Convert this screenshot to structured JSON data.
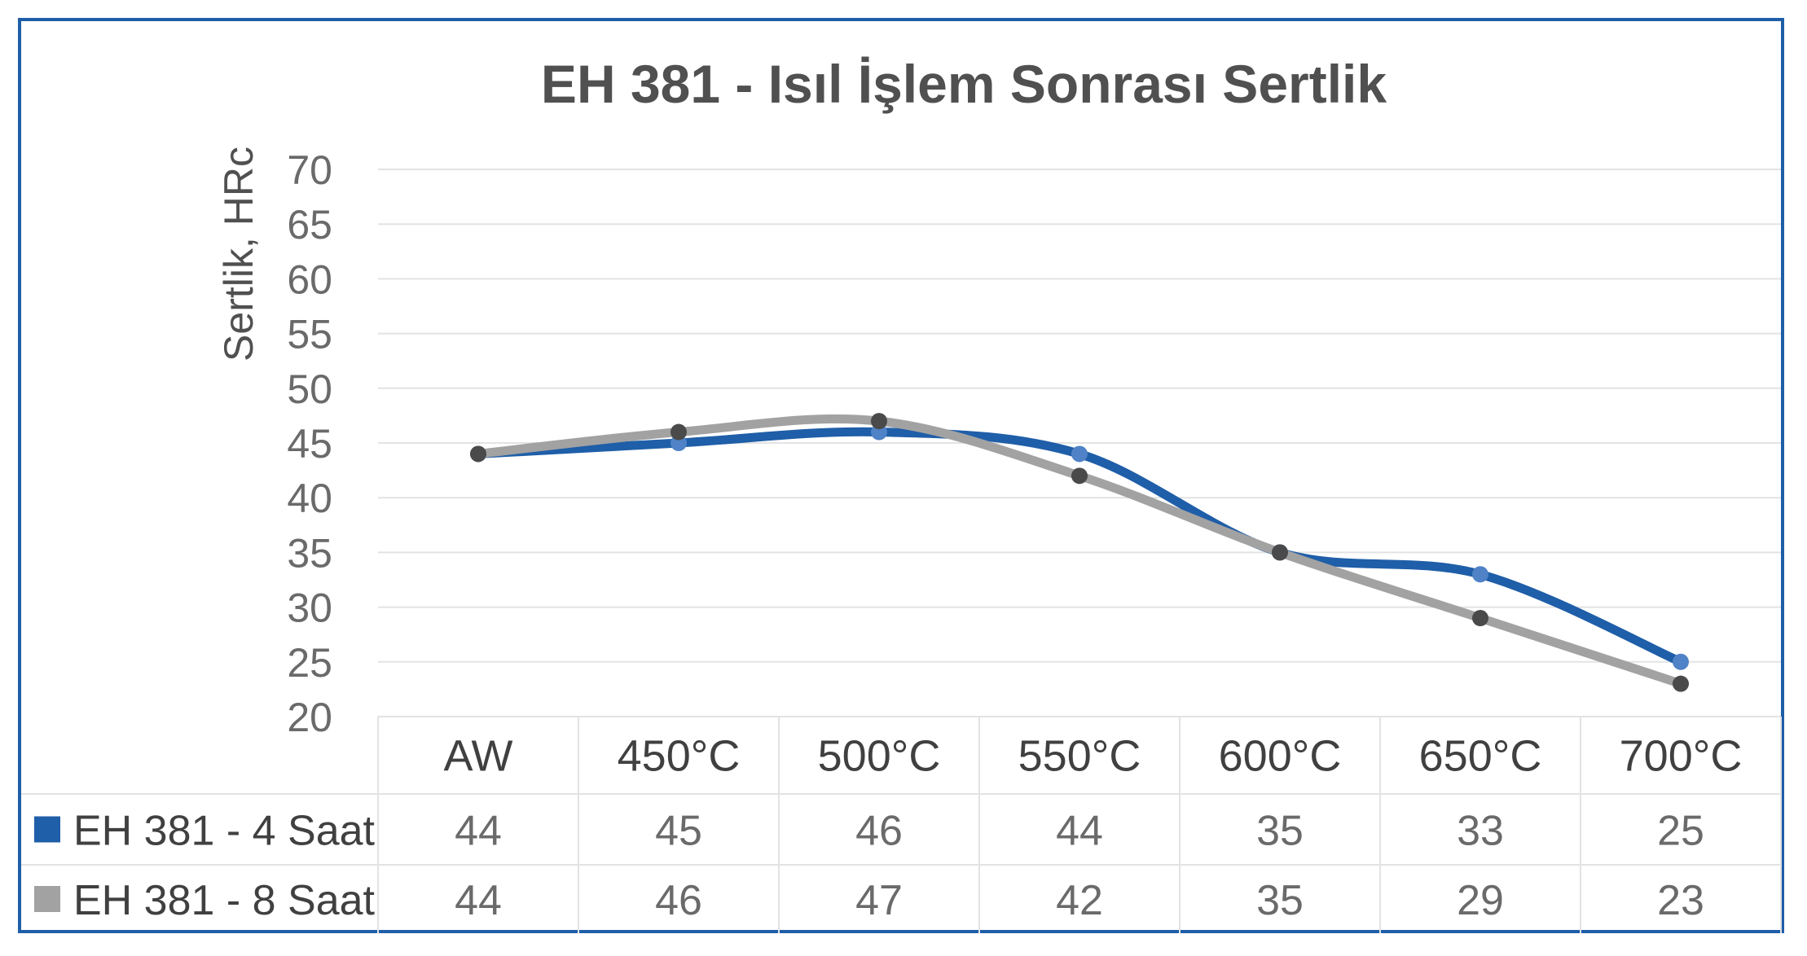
{
  "chart_data": {
    "type": "line",
    "title": "EH 381 - Isıl İşlem Sonrası Sertlik",
    "ylabel": "Sertlik, HRc",
    "xlabel": "",
    "ylim": [
      20,
      70
    ],
    "yticks": [
      "70",
      "65",
      "60",
      "55",
      "50",
      "45",
      "40",
      "35",
      "30",
      "25",
      "20"
    ],
    "categories": [
      "AW",
      "450°C",
      "500°C",
      "550°C",
      "600°C",
      "650°C",
      "700°C"
    ],
    "grid": true,
    "legend": "data-table-left",
    "series": [
      {
        "name": "EH 381 - 4 Saat",
        "values": [
          44,
          45,
          46,
          44,
          35,
          33,
          25
        ],
        "labels": [
          "44",
          "45",
          "46",
          "44",
          "35",
          "33",
          "25"
        ],
        "line_color": "#1f5ea8",
        "marker_color": "#4f82c6",
        "legend_color": "#1f5ea8"
      },
      {
        "name": "EH 381 - 8 Saat",
        "values": [
          44,
          46,
          47,
          42,
          35,
          29,
          23
        ],
        "labels": [
          "44",
          "46",
          "47",
          "42",
          "35",
          "29",
          "23"
        ],
        "line_color": "#a2a2a2",
        "marker_color": "#4a4a4a",
        "legend_color": "#a2a2a2"
      }
    ]
  },
  "colors": {
    "frame": "#1f5ea8",
    "grid": "#e3e3e3",
    "text": "#505050"
  }
}
